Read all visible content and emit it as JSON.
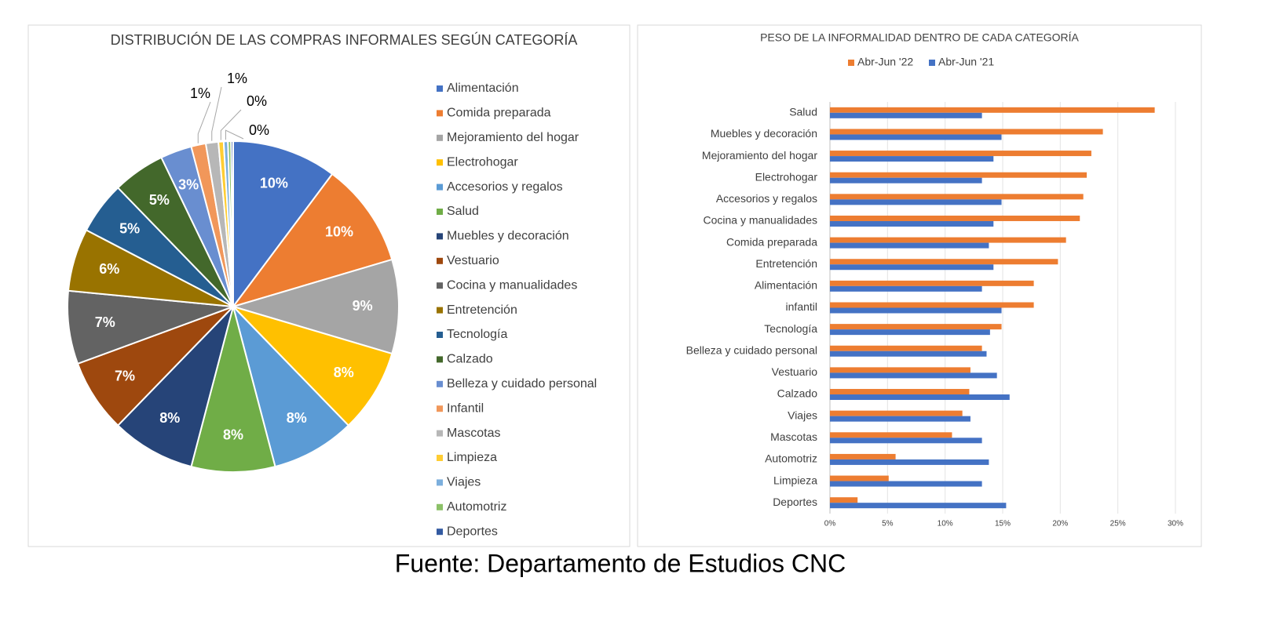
{
  "chart_data": [
    {
      "type": "pie",
      "title": "DISTRIBUCIÓN DE LAS COMPRAS INFORMALES SEGÚN CATEGORÍA",
      "categories": [
        "Alimentación",
        "Comida preparada",
        "Mejoramiento del hogar",
        "Electrohogar",
        "Accesorios y regalos",
        "Salud",
        "Muebles y decoración",
        "Vestuario",
        "Cocina y manualidades",
        "Entretención",
        "Tecnología",
        "Calzado",
        "Belleza y cuidado personal",
        "Infantil",
        "Mascotas",
        "Limpieza",
        "Viajes",
        "Automotriz",
        "Deportes"
      ],
      "values": [
        10,
        10,
        9,
        8,
        8,
        8,
        8,
        7,
        7,
        6,
        5,
        5,
        3,
        1.4,
        1.2,
        0.5,
        0.4,
        0.3,
        0.2
      ],
      "value_labels": [
        "10%",
        "10%",
        "9%",
        "8%",
        "8%",
        "8%",
        "8%",
        "7%",
        "7%",
        "6%",
        "5%",
        "5%",
        "3%",
        "1%",
        "1%",
        "0%",
        "0%",
        null,
        null
      ],
      "colors": [
        "#4472c4",
        "#ed7d31",
        "#a5a5a5",
        "#ffc000",
        "#5b9bd5",
        "#70ad47",
        "#264478",
        "#9e480e",
        "#636363",
        "#997300",
        "#255e91",
        "#43682b",
        "#698ed0",
        "#f1975a",
        "#b7b7b7",
        "#ffcd33",
        "#7cafdd",
        "#8cc168",
        "#335aa1"
      ],
      "legend": "right"
    },
    {
      "type": "barh",
      "title": "PESO DE LA INFORMALIDAD DENTRO DE CADA CATEGORÍA",
      "categories": [
        "Salud",
        "Muebles y decoración",
        "Mejoramiento del hogar",
        "Electrohogar",
        "Accesorios y regalos",
        "Cocina y manualidades",
        "Comida preparada",
        "Entretención",
        "Alimentación",
        "infantil",
        "Tecnología",
        "Belleza y cuidado personal",
        "Vestuario",
        "Calzado",
        "Viajes",
        "Mascotas",
        "Automotriz",
        "Limpieza",
        "Deportes"
      ],
      "series": [
        {
          "name": "Abr-Jun '22",
          "color": "#ed7d31",
          "values": [
            28.2,
            23.7,
            22.7,
            22.3,
            22.0,
            21.7,
            20.5,
            19.8,
            17.7,
            17.7,
            14.9,
            13.2,
            12.2,
            12.1,
            11.5,
            10.6,
            5.7,
            5.1,
            2.4
          ]
        },
        {
          "name": "Abr-Jun '21",
          "color": "#4472c4",
          "values": [
            13.2,
            14.9,
            14.2,
            13.2,
            14.9,
            14.2,
            13.8,
            14.2,
            13.2,
            14.9,
            13.9,
            13.6,
            14.5,
            15.6,
            12.2,
            13.2,
            13.8,
            13.2,
            15.3
          ]
        }
      ],
      "xlim": [
        0,
        30
      ],
      "xticks": [
        {
          "value": 0,
          "label": "0%"
        },
        {
          "value": 5,
          "label": "5%"
        },
        {
          "value": 10,
          "label": "10%"
        },
        {
          "value": 15,
          "label": "15%"
        },
        {
          "value": 20,
          "label": "20%"
        },
        {
          "value": 25,
          "label": "25%"
        },
        {
          "value": 30,
          "label": "30%"
        }
      ],
      "grid": true,
      "legend": "top"
    }
  ],
  "source": "Fuente: Departamento de Estudios CNC"
}
